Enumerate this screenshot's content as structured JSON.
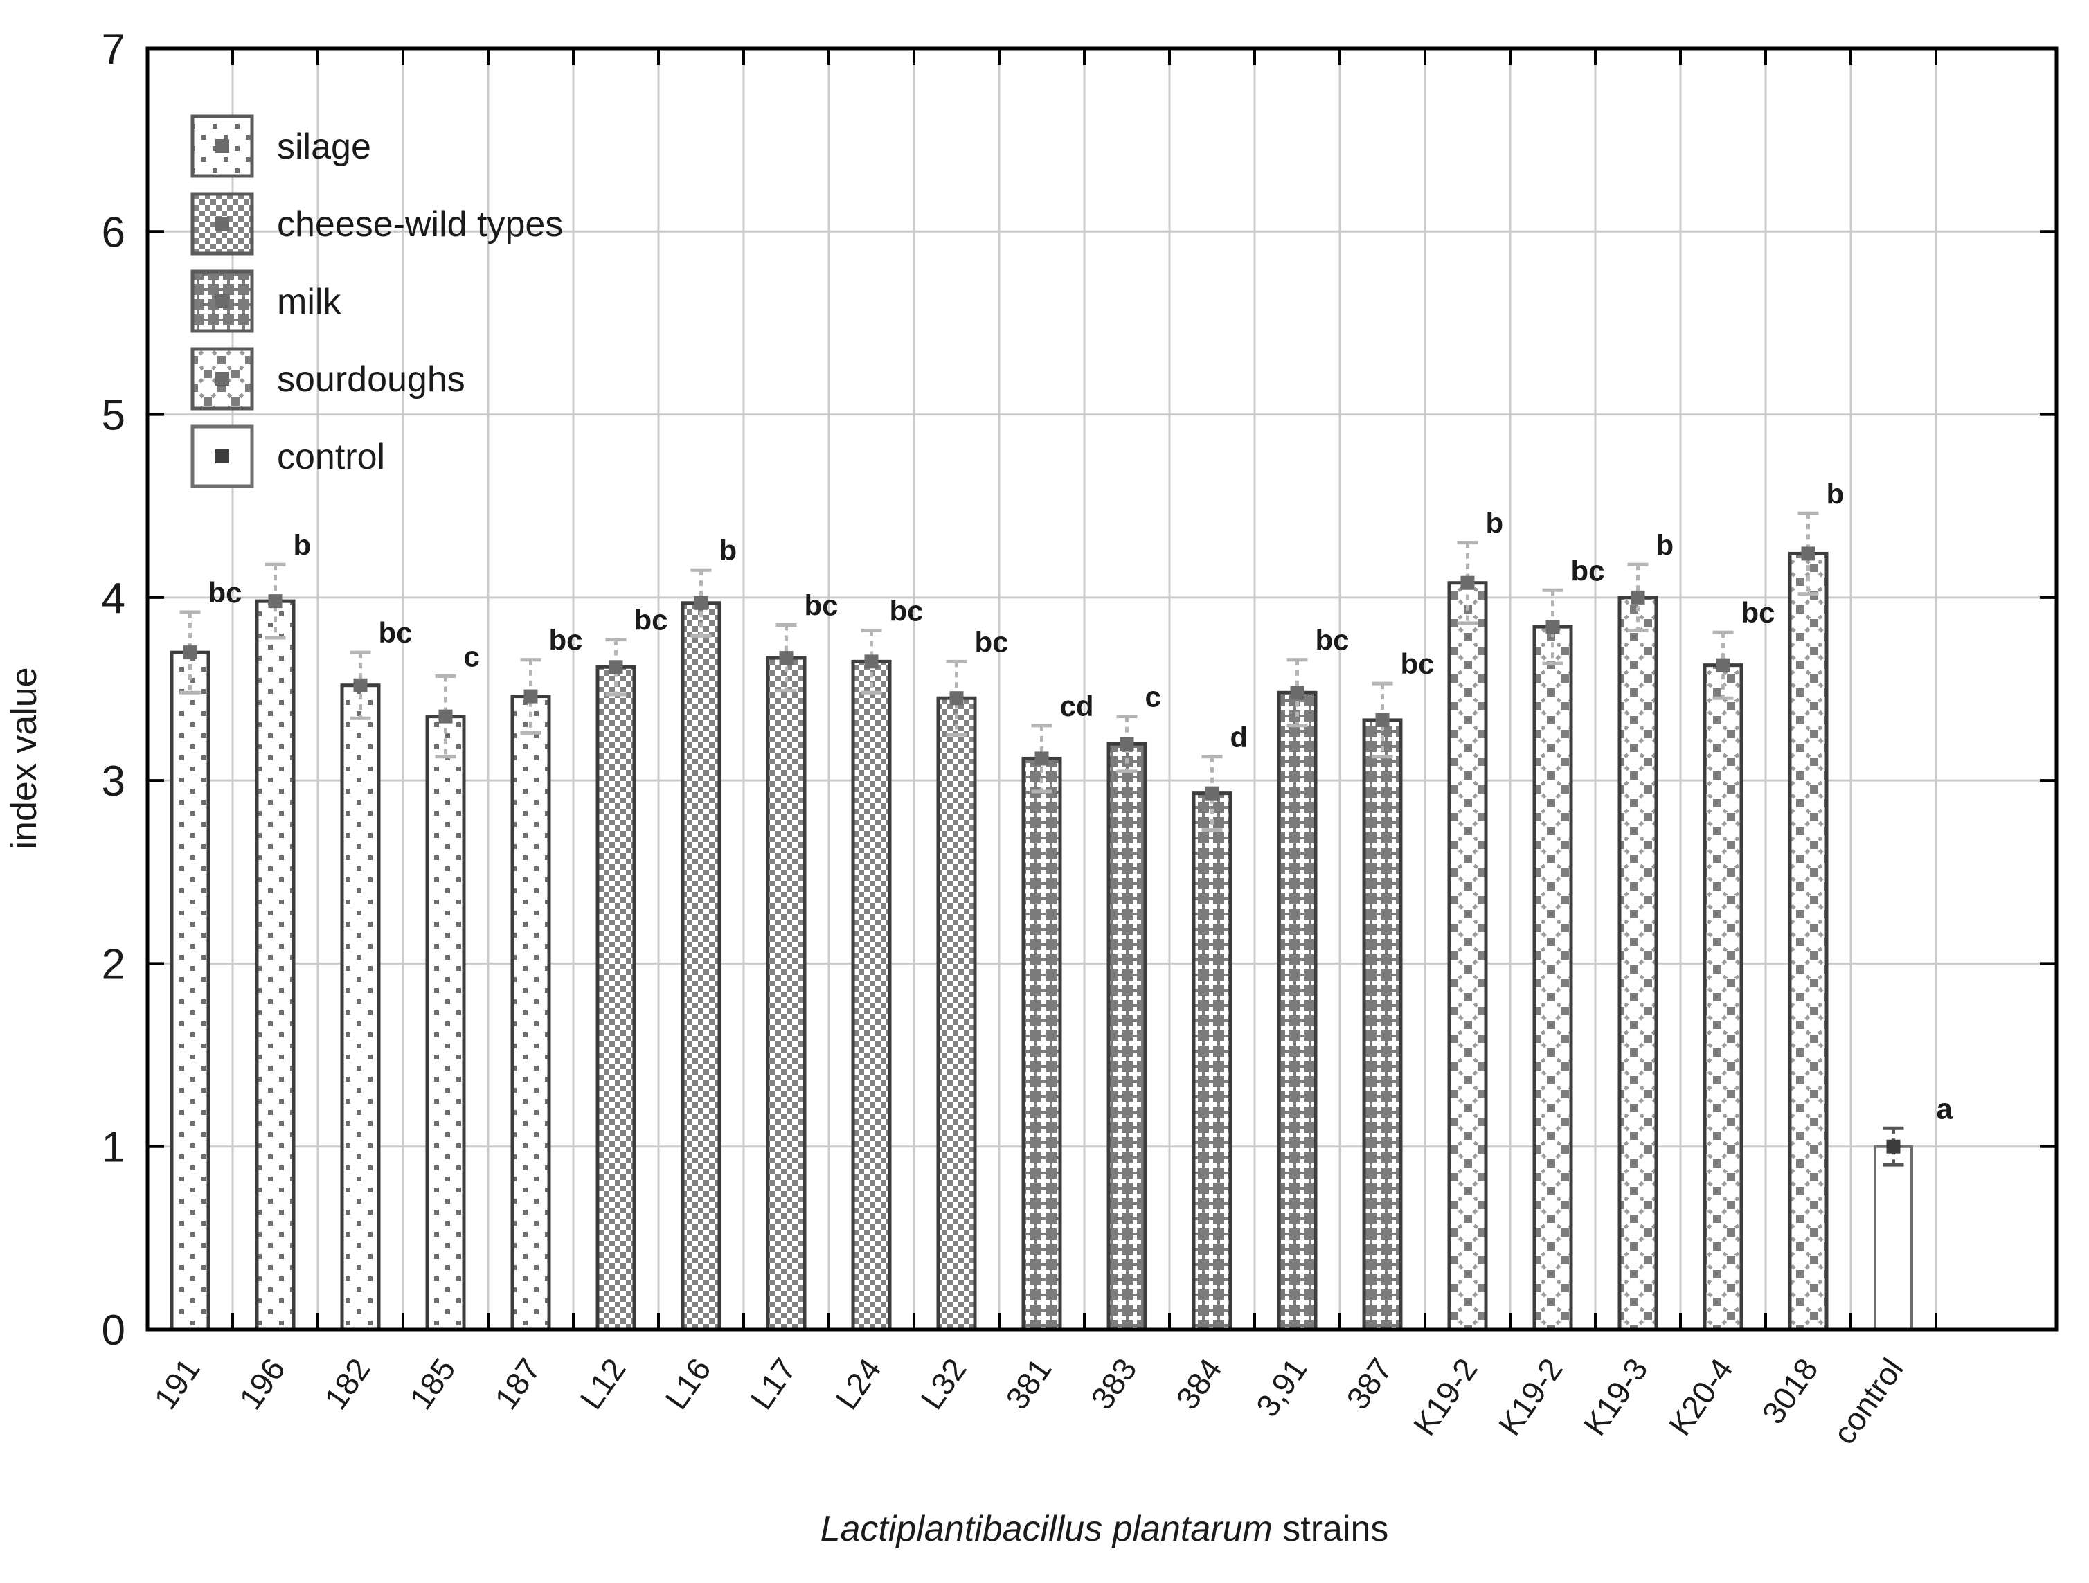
{
  "figure": {
    "y_axis_label": "index value",
    "x_axis_title_italic": "Lactiplantibacillus plantarum",
    "x_axis_title_regular": " strains"
  },
  "legend": {
    "items": [
      {
        "label": "silage",
        "pattern": "silage"
      },
      {
        "label": "cheese-wild types",
        "pattern": "cheese"
      },
      {
        "label": "milk",
        "pattern": "milk"
      },
      {
        "label": "sourdoughs",
        "pattern": "sourdough"
      },
      {
        "label": "control",
        "pattern": "control"
      }
    ]
  },
  "chart_data": {
    "type": "bar",
    "title": "",
    "xlabel": "Lactiplantibacillus plantarum strains",
    "ylabel": "index value",
    "ylim": [
      0,
      7
    ],
    "y_ticks": [
      0,
      1,
      2,
      3,
      4,
      5,
      6,
      7
    ],
    "grid": true,
    "legend_position": "top-left",
    "groups": [
      "silage",
      "cheese-wild types",
      "milk",
      "sourdoughs",
      "control"
    ],
    "categories": [
      "191",
      "196",
      "182",
      "185",
      "187",
      "L12",
      "L16",
      "L17",
      "L24",
      "L32",
      "381",
      "383",
      "384",
      "3,91",
      "387",
      "K19-2",
      "K19-2",
      "K19-3",
      "K20-4",
      "3018",
      "control"
    ],
    "group_of_bar": [
      0,
      0,
      0,
      0,
      0,
      1,
      1,
      1,
      1,
      1,
      2,
      2,
      2,
      2,
      2,
      3,
      3,
      3,
      3,
      3,
      4
    ],
    "values": [
      3.7,
      3.98,
      3.52,
      3.35,
      3.46,
      3.62,
      3.97,
      3.67,
      3.65,
      3.45,
      3.12,
      3.2,
      2.93,
      3.48,
      3.33,
      4.08,
      3.84,
      4.0,
      3.63,
      4.24,
      1.0
    ],
    "errors": [
      0.22,
      0.2,
      0.18,
      0.22,
      0.2,
      0.15,
      0.18,
      0.18,
      0.17,
      0.2,
      0.18,
      0.15,
      0.2,
      0.18,
      0.2,
      0.22,
      0.2,
      0.18,
      0.18,
      0.22,
      0.1
    ],
    "sig_letters": [
      "bc",
      "b",
      "bc",
      "c",
      "bc",
      "bc",
      "b",
      "bc",
      "bc",
      "bc",
      "cd",
      "c",
      "d",
      "bc",
      "bc",
      "b",
      "bc",
      "b",
      "bc",
      "b",
      "a"
    ]
  },
  "colors": {
    "bar_outline": "#3d3d3d",
    "control_outline": "#6f6f6f",
    "pattern_gray": "#808080",
    "milk_background": "#7b7b7b",
    "dot_gray": "#6e6e6e",
    "gridline": "#cbcbcb",
    "axis": "#000000",
    "marker": "#6b6b6b",
    "control_marker": "#3c3c3c",
    "whisker": "#b4b4b4",
    "whisker_dark": "#555555",
    "text": "#1a1a1a"
  }
}
